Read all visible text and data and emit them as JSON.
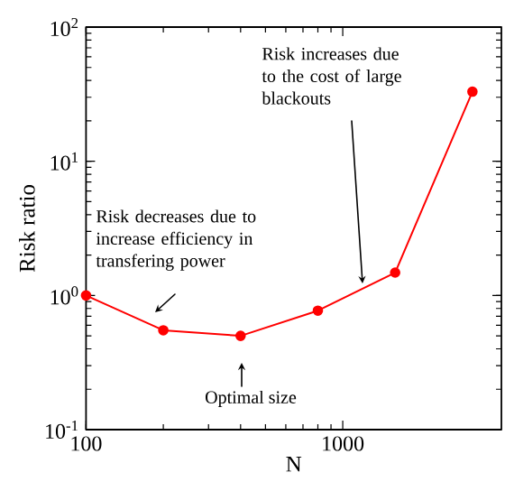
{
  "chart_data": {
    "type": "line",
    "xlabel": "N",
    "ylabel": "Risk ratio",
    "log": "xy",
    "x": [
      100,
      200,
      400,
      800,
      1600,
      3200
    ],
    "series": [
      {
        "color": "#ff0000",
        "values": [
          1.0,
          0.55,
          0.5,
          0.77,
          1.48,
          33
        ]
      }
    ],
    "xlim": [
      100,
      4150
    ],
    "xticks": [
      100,
      1000
    ],
    "ylim": [
      0.1,
      100
    ],
    "yticks": [
      {
        "value": 0.1,
        "label": "10$^{-1}$"
      },
      {
        "value": 1,
        "label": "10$^{0}$"
      },
      {
        "value": 10,
        "label": "10$^{1}$"
      },
      {
        "value": 100,
        "label": "10$^{2}$"
      }
    ],
    "annotations": [
      "Risk decreases due to increase efficiency in transfering power",
      "Optimal size",
      "Risk increases due to the cost of large blackouts"
    ],
    "grid": false,
    "legend": false,
    "marker": "circle",
    "line_style": "solid"
  }
}
